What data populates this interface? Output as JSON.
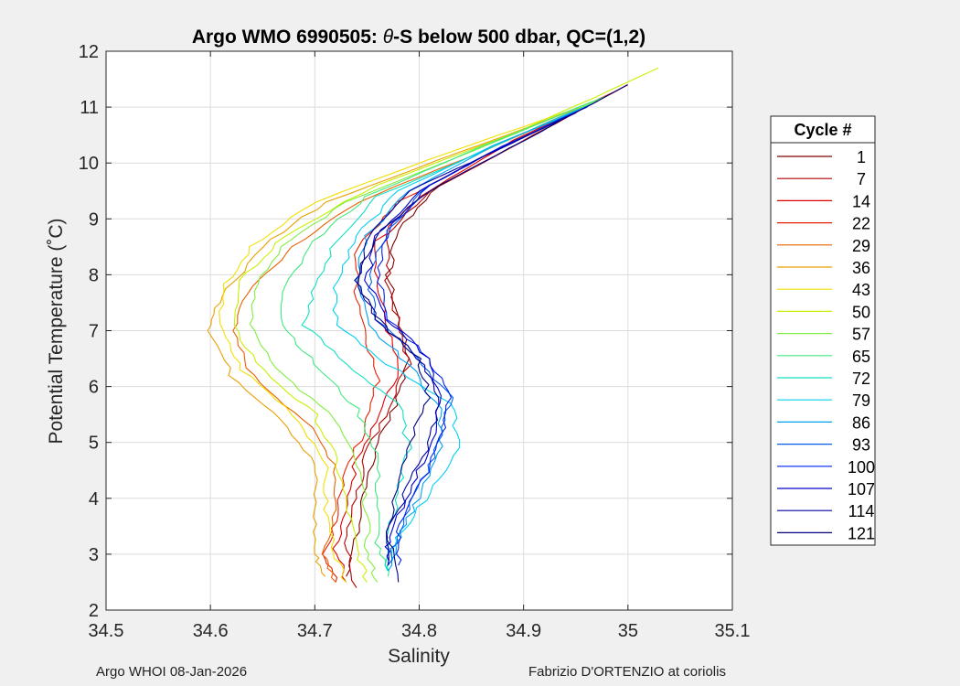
{
  "chart_data": {
    "type": "line",
    "title": "Argo WMO 6990505: θ-S below 500 dbar,  QC=(1,2)",
    "title_prefix": "Argo WMO 6990505: ",
    "title_theta": "θ",
    "title_suffix": "-S below 500 dbar,  QC=(1,2)",
    "xlabel": "Salinity",
    "ylabel": "Potential Temperature (˚C)",
    "xlim": [
      34.5,
      35.1
    ],
    "ylim": [
      2,
      12
    ],
    "xticks": [
      34.5,
      34.6,
      34.7,
      34.8,
      34.9,
      35.0,
      35.1
    ],
    "xtick_labels": [
      "34.5",
      "34.6",
      "34.7",
      "34.8",
      "34.9",
      "35",
      "35.1"
    ],
    "yticks": [
      2,
      3,
      4,
      5,
      6,
      7,
      8,
      9,
      10,
      11,
      12
    ],
    "ytick_labels": [
      "2",
      "3",
      "4",
      "5",
      "6",
      "7",
      "8",
      "9",
      "10",
      "11",
      "12"
    ],
    "grid": true,
    "legend": {
      "title": "Cycle #",
      "placement": "right-outside",
      "entries": [
        {
          "label": "1",
          "color": "#800000"
        },
        {
          "label": "7",
          "color": "#b00000"
        },
        {
          "label": "14",
          "color": "#e00000"
        },
        {
          "label": "22",
          "color": "#e82000"
        },
        {
          "label": "29",
          "color": "#e86000"
        },
        {
          "label": "36",
          "color": "#e8a000"
        },
        {
          "label": "43",
          "color": "#f0e000"
        },
        {
          "label": "50",
          "color": "#c8f000"
        },
        {
          "label": "57",
          "color": "#80ee40"
        },
        {
          "label": "65",
          "color": "#40e880"
        },
        {
          "label": "72",
          "color": "#10e0c0"
        },
        {
          "label": "79",
          "color": "#00d0f0"
        },
        {
          "label": "86",
          "color": "#00a0f0"
        },
        {
          "label": "93",
          "color": "#0060f0"
        },
        {
          "label": "100",
          "color": "#0020f0"
        },
        {
          "label": "107",
          "color": "#0000d0"
        },
        {
          "label": "114",
          "color": "#0000a0"
        },
        {
          "label": "121",
          "color": "#000080"
        }
      ]
    },
    "series": [
      {
        "name": "1",
        "color": "#800000",
        "points": [
          [
            35.0,
            11.4
          ],
          [
            34.91,
            10.5
          ],
          [
            34.82,
            9.6
          ],
          [
            34.78,
            8.8
          ],
          [
            34.77,
            8.0
          ],
          [
            34.78,
            7.2
          ],
          [
            34.79,
            6.5
          ],
          [
            34.78,
            5.8
          ],
          [
            34.76,
            5.0
          ],
          [
            34.75,
            4.2
          ],
          [
            34.74,
            3.4
          ],
          [
            34.73,
            2.6
          ]
        ]
      },
      {
        "name": "7",
        "color": "#b00000",
        "points": [
          [
            34.99,
            11.3
          ],
          [
            34.9,
            10.4
          ],
          [
            34.81,
            9.5
          ],
          [
            34.77,
            8.7
          ],
          [
            34.77,
            7.9
          ],
          [
            34.78,
            7.1
          ],
          [
            34.79,
            6.4
          ],
          [
            34.77,
            5.6
          ],
          [
            34.75,
            4.8
          ],
          [
            34.74,
            4.0
          ],
          [
            34.73,
            3.2
          ],
          [
            34.74,
            2.4
          ]
        ]
      },
      {
        "name": "14",
        "color": "#e00000",
        "points": [
          [
            34.99,
            11.3
          ],
          [
            34.89,
            10.4
          ],
          [
            34.8,
            9.4
          ],
          [
            34.76,
            8.6
          ],
          [
            34.76,
            7.8
          ],
          [
            34.77,
            7.0
          ],
          [
            34.78,
            6.3
          ],
          [
            34.76,
            5.5
          ],
          [
            34.74,
            4.7
          ],
          [
            34.73,
            3.9
          ],
          [
            34.72,
            3.1
          ],
          [
            34.73,
            2.5
          ]
        ]
      },
      {
        "name": "22",
        "color": "#e82000",
        "points": [
          [
            34.98,
            11.2
          ],
          [
            34.88,
            10.3
          ],
          [
            34.78,
            9.3
          ],
          [
            34.74,
            8.5
          ],
          [
            34.74,
            7.7
          ],
          [
            34.75,
            6.9
          ],
          [
            34.76,
            6.1
          ],
          [
            34.75,
            5.3
          ],
          [
            34.73,
            4.5
          ],
          [
            34.72,
            3.7
          ],
          [
            34.71,
            3.0
          ],
          [
            34.72,
            2.5
          ]
        ]
      },
      {
        "name": "29",
        "color": "#e86000",
        "points": [
          [
            34.98,
            11.2
          ],
          [
            34.86,
            10.2
          ],
          [
            34.74,
            9.3
          ],
          [
            34.68,
            8.5
          ],
          [
            34.64,
            7.8
          ],
          [
            34.62,
            7.0
          ],
          [
            34.64,
            6.2
          ],
          [
            34.69,
            5.4
          ],
          [
            34.72,
            4.6
          ],
          [
            34.72,
            3.8
          ],
          [
            34.71,
            3.0
          ],
          [
            34.72,
            2.5
          ]
        ]
      },
      {
        "name": "36",
        "color": "#e8a000",
        "points": [
          [
            34.97,
            11.1
          ],
          [
            34.84,
            10.2
          ],
          [
            34.71,
            9.3
          ],
          [
            34.65,
            8.5
          ],
          [
            34.61,
            7.6
          ],
          [
            34.6,
            7.0
          ],
          [
            34.62,
            6.2
          ],
          [
            34.67,
            5.4
          ],
          [
            34.7,
            4.6
          ],
          [
            34.7,
            3.8
          ],
          [
            34.7,
            3.0
          ],
          [
            34.71,
            2.6
          ]
        ]
      },
      {
        "name": "43",
        "color": "#f0e000",
        "points": [
          [
            34.97,
            11.1
          ],
          [
            34.83,
            10.2
          ],
          [
            34.7,
            9.3
          ],
          [
            34.64,
            8.5
          ],
          [
            34.61,
            7.7
          ],
          [
            34.61,
            7.0
          ],
          [
            34.63,
            6.3
          ],
          [
            34.68,
            5.5
          ],
          [
            34.71,
            4.7
          ],
          [
            34.71,
            3.8
          ],
          [
            34.72,
            3.0
          ],
          [
            34.73,
            2.5
          ]
        ]
      },
      {
        "name": "50",
        "color": "#c8f000",
        "points": [
          [
            35.03,
            11.7
          ],
          [
            34.9,
            10.6
          ],
          [
            34.76,
            9.6
          ],
          [
            34.67,
            8.7
          ],
          [
            34.63,
            7.9
          ],
          [
            34.62,
            7.1
          ],
          [
            34.65,
            6.3
          ],
          [
            34.7,
            5.5
          ],
          [
            34.72,
            4.7
          ],
          [
            34.73,
            3.9
          ],
          [
            34.74,
            3.1
          ],
          [
            34.75,
            2.5
          ]
        ]
      },
      {
        "name": "57",
        "color": "#80ee40",
        "points": [
          [
            34.98,
            11.2
          ],
          [
            34.85,
            10.2
          ],
          [
            34.73,
            9.3
          ],
          [
            34.67,
            8.5
          ],
          [
            34.64,
            7.7
          ],
          [
            34.64,
            7.0
          ],
          [
            34.67,
            6.2
          ],
          [
            34.72,
            5.4
          ],
          [
            34.74,
            4.6
          ],
          [
            34.75,
            3.8
          ],
          [
            34.75,
            3.0
          ],
          [
            34.76,
            2.5
          ]
        ]
      },
      {
        "name": "65",
        "color": "#40e880",
        "points": [
          [
            34.98,
            11.2
          ],
          [
            34.86,
            10.3
          ],
          [
            34.75,
            9.4
          ],
          [
            34.7,
            8.6
          ],
          [
            34.67,
            7.8
          ],
          [
            34.67,
            7.1
          ],
          [
            34.7,
            6.4
          ],
          [
            34.74,
            5.6
          ],
          [
            34.76,
            4.8
          ],
          [
            34.76,
            4.0
          ],
          [
            34.76,
            3.2
          ],
          [
            34.77,
            2.6
          ]
        ]
      },
      {
        "name": "72",
        "color": "#10e0c0",
        "points": [
          [
            34.97,
            11.1
          ],
          [
            34.86,
            10.2
          ],
          [
            34.76,
            9.4
          ],
          [
            34.72,
            8.6
          ],
          [
            34.7,
            7.8
          ],
          [
            34.69,
            7.1
          ],
          [
            34.73,
            6.4
          ],
          [
            34.78,
            5.7
          ],
          [
            34.79,
            4.9
          ],
          [
            34.78,
            4.1
          ],
          [
            34.77,
            3.3
          ],
          [
            34.77,
            2.7
          ]
        ]
      },
      {
        "name": "79",
        "color": "#00d0f0",
        "points": [
          [
            34.97,
            11.1
          ],
          [
            34.87,
            10.3
          ],
          [
            34.78,
            9.5
          ],
          [
            34.74,
            8.7
          ],
          [
            34.72,
            7.9
          ],
          [
            34.72,
            7.1
          ],
          [
            34.77,
            6.4
          ],
          [
            34.83,
            5.7
          ],
          [
            34.84,
            4.9
          ],
          [
            34.81,
            4.1
          ],
          [
            34.78,
            3.3
          ],
          [
            34.77,
            2.7
          ]
        ]
      },
      {
        "name": "86",
        "color": "#00a0f0",
        "points": [
          [
            34.96,
            11.0
          ],
          [
            34.87,
            10.3
          ],
          [
            34.79,
            9.5
          ],
          [
            34.75,
            8.7
          ],
          [
            34.74,
            7.9
          ],
          [
            34.75,
            7.1
          ],
          [
            34.79,
            6.4
          ],
          [
            34.82,
            5.6
          ],
          [
            34.82,
            4.8
          ],
          [
            34.8,
            4.0
          ],
          [
            34.78,
            3.3
          ],
          [
            34.77,
            2.7
          ]
        ]
      },
      {
        "name": "93",
        "color": "#0060f0",
        "points": [
          [
            34.96,
            11.0
          ],
          [
            34.88,
            10.3
          ],
          [
            34.81,
            9.6
          ],
          [
            34.77,
            8.8
          ],
          [
            34.75,
            8.0
          ],
          [
            34.76,
            7.2
          ],
          [
            34.8,
            6.5
          ],
          [
            34.83,
            5.8
          ],
          [
            34.82,
            5.0
          ],
          [
            34.8,
            4.2
          ],
          [
            34.78,
            3.4
          ],
          [
            34.77,
            2.8
          ]
        ]
      },
      {
        "name": "100",
        "color": "#0020f0",
        "points": [
          [
            34.96,
            11.0
          ],
          [
            34.88,
            10.3
          ],
          [
            34.81,
            9.6
          ],
          [
            34.77,
            8.8
          ],
          [
            34.76,
            8.0
          ],
          [
            34.77,
            7.2
          ],
          [
            34.81,
            6.5
          ],
          [
            34.83,
            5.8
          ],
          [
            34.82,
            5.0
          ],
          [
            34.8,
            4.2
          ],
          [
            34.78,
            3.4
          ],
          [
            34.78,
            2.8
          ]
        ]
      },
      {
        "name": "107",
        "color": "#0000d0",
        "points": [
          [
            34.95,
            10.9
          ],
          [
            34.87,
            10.2
          ],
          [
            34.8,
            9.5
          ],
          [
            34.76,
            8.7
          ],
          [
            34.75,
            7.9
          ],
          [
            34.77,
            7.2
          ],
          [
            34.81,
            6.5
          ],
          [
            34.82,
            5.7
          ],
          [
            34.81,
            4.9
          ],
          [
            34.79,
            4.1
          ],
          [
            34.77,
            3.3
          ],
          [
            34.77,
            2.8
          ]
        ]
      },
      {
        "name": "114",
        "color": "#0000a0",
        "points": [
          [
            34.95,
            10.9
          ],
          [
            34.86,
            10.1
          ],
          [
            34.79,
            9.5
          ],
          [
            34.75,
            8.7
          ],
          [
            34.74,
            7.9
          ],
          [
            34.76,
            7.2
          ],
          [
            34.8,
            6.5
          ],
          [
            34.82,
            5.8
          ],
          [
            34.81,
            5.0
          ],
          [
            34.79,
            4.2
          ],
          [
            34.77,
            3.4
          ],
          [
            34.77,
            2.8
          ]
        ]
      },
      {
        "name": "121",
        "color": "#000080",
        "points": [
          [
            35.0,
            11.4
          ],
          [
            34.9,
            10.4
          ],
          [
            34.82,
            9.6
          ],
          [
            34.76,
            8.8
          ],
          [
            34.74,
            7.9
          ],
          [
            34.76,
            7.2
          ],
          [
            34.8,
            6.5
          ],
          [
            34.81,
            5.8
          ],
          [
            34.79,
            5.0
          ],
          [
            34.78,
            4.2
          ],
          [
            34.77,
            3.4
          ],
          [
            34.78,
            2.5
          ]
        ]
      }
    ]
  },
  "footer": {
    "left": "Argo WHOI 08-Jan-2026",
    "right": "Fabrizio D'ORTENZIO at coriolis"
  }
}
